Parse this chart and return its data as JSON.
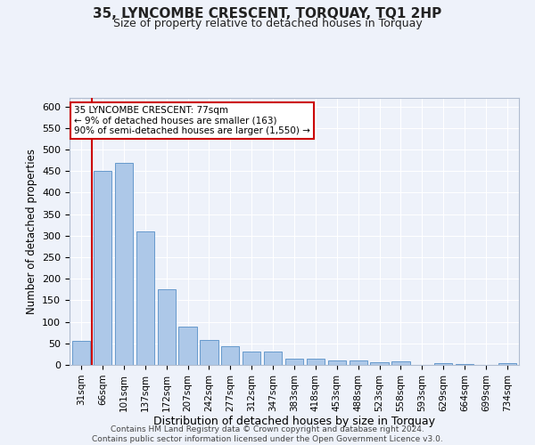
{
  "title": "35, LYNCOMBE CRESCENT, TORQUAY, TQ1 2HP",
  "subtitle": "Size of property relative to detached houses in Torquay",
  "xlabel": "Distribution of detached houses by size in Torquay",
  "ylabel": "Number of detached properties",
  "bar_color": "#adc8e8",
  "bar_edge_color": "#6699cc",
  "background_color": "#eef2fa",
  "grid_color": "#ffffff",
  "categories": [
    "31sqm",
    "66sqm",
    "101sqm",
    "137sqm",
    "172sqm",
    "207sqm",
    "242sqm",
    "277sqm",
    "312sqm",
    "347sqm",
    "383sqm",
    "418sqm",
    "453sqm",
    "488sqm",
    "523sqm",
    "558sqm",
    "593sqm",
    "629sqm",
    "664sqm",
    "699sqm",
    "734sqm"
  ],
  "values": [
    55,
    450,
    470,
    310,
    175,
    88,
    58,
    44,
    30,
    32,
    14,
    15,
    10,
    10,
    6,
    8,
    0,
    5,
    2,
    0,
    5
  ],
  "vline_pos": 0.5,
  "vline_color": "#cc0000",
  "annotation_text": "35 LYNCOMBE CRESCENT: 77sqm\n← 9% of detached houses are smaller (163)\n90% of semi-detached houses are larger (1,550) →",
  "annotation_box_color": "#ffffff",
  "annotation_box_edge_color": "#cc0000",
  "footer_line1": "Contains HM Land Registry data © Crown copyright and database right 2024.",
  "footer_line2": "Contains public sector information licensed under the Open Government Licence v3.0.",
  "ylim": [
    0,
    620
  ],
  "yticks": [
    0,
    50,
    100,
    150,
    200,
    250,
    300,
    350,
    400,
    450,
    500,
    550,
    600
  ]
}
